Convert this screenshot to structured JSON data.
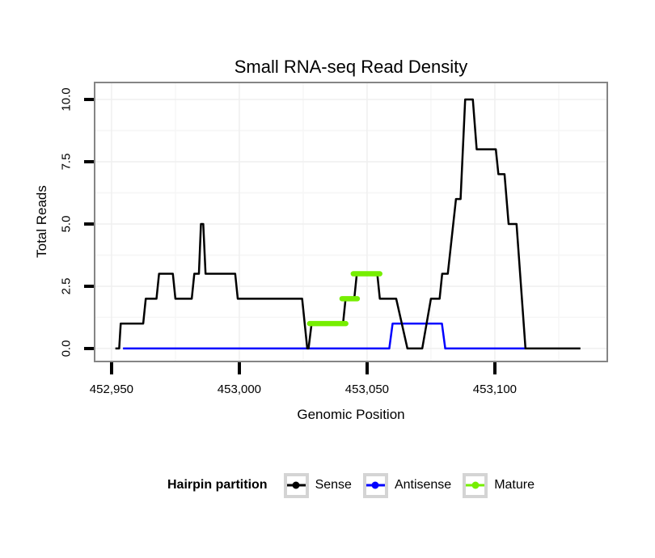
{
  "chart": {
    "title": "Small RNA-seq Read Density",
    "xlabel": "Genomic Position",
    "ylabel": "Total Reads"
  },
  "legend": {
    "title": "Hairpin partition",
    "items": [
      {
        "label": "Sense",
        "color": "#000000"
      },
      {
        "label": "Antisense",
        "color": "#0000FF"
      },
      {
        "label": "Mature",
        "color": "#76EE00"
      }
    ]
  },
  "colors": {
    "sense": "#000000",
    "antisense": "#0000FF",
    "mature": "#76EE00",
    "panel_border": "#858585",
    "grid_major": "#efefef",
    "grid_minor": "#f6f6f6",
    "legend_key_border": "#d4d4d4"
  },
  "chart_data": {
    "type": "line",
    "title": "Small RNA-seq Read Density",
    "xlabel": "Genomic Position",
    "ylabel": "Total Reads",
    "grid": true,
    "legend_position": "bottom",
    "x_domain": [
      452943.7,
      453143.7
    ],
    "y_domain": [
      -0.49,
      10.65
    ],
    "x_ticks": [
      452950,
      453000,
      453050,
      453100
    ],
    "x_tick_labels": [
      "452,950",
      "453,000",
      "453,050",
      "453,100"
    ],
    "y_ticks": [
      0.0,
      2.5,
      5.0,
      7.5,
      10.0
    ],
    "y_tick_labels": [
      "0.0",
      "2.5",
      "5.0",
      "7.5",
      "10.0"
    ],
    "x_minor_ticks": [
      452975,
      453025,
      453075,
      453125
    ],
    "y_minor_ticks": [
      1.25,
      3.75,
      6.25,
      8.75
    ],
    "series": [
      {
        "name": "Antisense",
        "color": "#0000FF",
        "style": "line",
        "width": 2.5,
        "points": [
          [
            452954.5,
            0
          ],
          [
            453058.7,
            0
          ],
          [
            453060.0,
            1
          ],
          [
            453079.3,
            1
          ],
          [
            453080.6,
            0
          ],
          [
            453112.0,
            0
          ]
        ]
      },
      {
        "name": "Sense",
        "color": "#000000",
        "style": "line",
        "width": 2.5,
        "points": [
          [
            452951.5,
            0
          ],
          [
            452953.0,
            0
          ],
          [
            452953.6,
            1
          ],
          [
            452962.4,
            1
          ],
          [
            452963.4,
            2
          ],
          [
            452967.6,
            2
          ],
          [
            452968.6,
            3
          ],
          [
            452974.0,
            3
          ],
          [
            452975.0,
            2
          ],
          [
            452981.4,
            2
          ],
          [
            452982.4,
            3
          ],
          [
            452984.2,
            3
          ],
          [
            452985.0,
            5
          ],
          [
            452985.9,
            5
          ],
          [
            452986.8,
            3
          ],
          [
            452998.4,
            3
          ],
          [
            452999.4,
            2
          ],
          [
            453024.6,
            2
          ],
          [
            453026.6,
            0
          ],
          [
            453027.1,
            0
          ],
          [
            453028.3,
            1
          ],
          [
            453040.6,
            1
          ],
          [
            453041.6,
            2
          ],
          [
            453045.0,
            2
          ],
          [
            453046.0,
            3
          ],
          [
            453054.0,
            3
          ],
          [
            453055.0,
            2
          ],
          [
            453061.4,
            2
          ],
          [
            453065.8,
            0
          ],
          [
            453071.6,
            0
          ],
          [
            453075.0,
            2
          ],
          [
            453078.4,
            2
          ],
          [
            453079.4,
            3
          ],
          [
            453081.6,
            3
          ],
          [
            453084.8,
            6
          ],
          [
            453086.6,
            6
          ],
          [
            453088.4,
            10
          ],
          [
            453091.4,
            10
          ],
          [
            453092.9,
            8
          ],
          [
            453100.4,
            8
          ],
          [
            453101.4,
            7
          ],
          [
            453103.8,
            7
          ],
          [
            453105.4,
            5
          ],
          [
            453108.5,
            5
          ],
          [
            453112.0,
            0
          ],
          [
            453133.5,
            0
          ]
        ]
      },
      {
        "name": "Mature",
        "color": "#76EE00",
        "style": "thick-segments",
        "width": 6.5,
        "segments": [
          [
            453027.5,
            453041.7,
            1
          ],
          [
            453040.2,
            453046.2,
            2
          ],
          [
            453044.6,
            453055.0,
            3
          ]
        ]
      }
    ]
  }
}
